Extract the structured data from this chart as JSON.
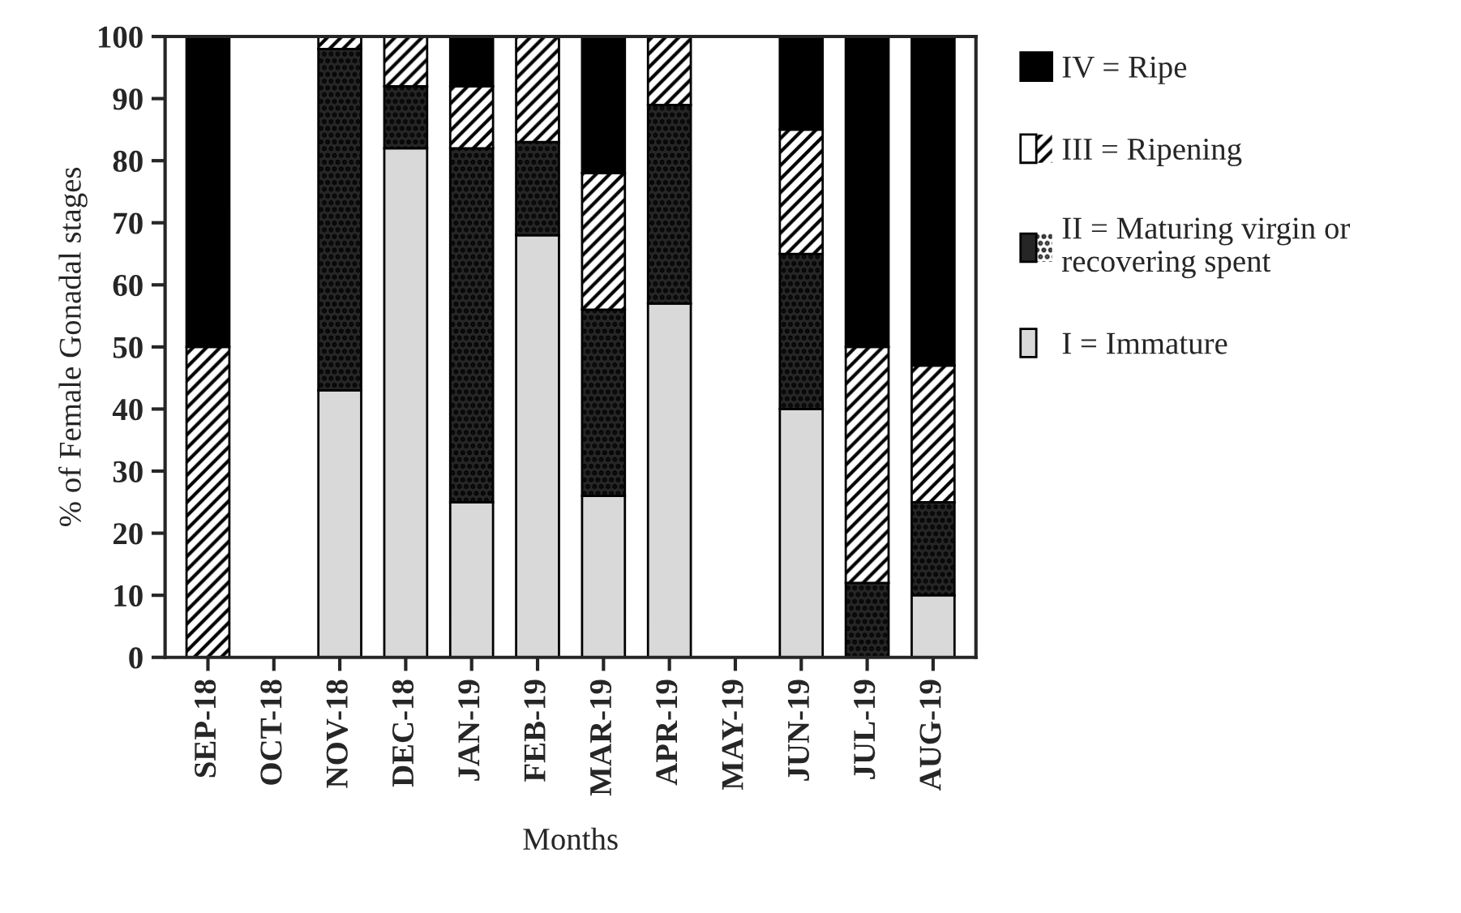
{
  "chart_data": {
    "type": "bar",
    "stacked": true,
    "xlabel": "Months",
    "ylabel": "% of Female Gonadal stages",
    "categories": [
      "SEP-18",
      "OCT-18",
      "NOV-18",
      "DEC-18",
      "JAN-19",
      "FEB-19",
      "MAR-19",
      "APR-19",
      "MAY-19",
      "JUN-19",
      "JUL-19",
      "AUG-19"
    ],
    "series": [
      {
        "name": "I = Immature",
        "color": "#d9d9d9",
        "values": [
          0,
          null,
          43,
          82,
          25,
          68,
          26,
          57,
          null,
          40,
          0,
          10
        ]
      },
      {
        "name": "II = Maturing virgin or\nrecovering spent",
        "color": "#262626",
        "values": [
          0,
          null,
          55,
          10,
          57,
          15,
          30,
          32,
          null,
          25,
          12,
          15
        ]
      },
      {
        "name": "III = Ripening",
        "color": "#ffffff",
        "values": [
          50,
          null,
          2,
          8,
          10,
          17,
          22,
          11,
          null,
          20,
          38,
          22
        ]
      },
      {
        "name": "IV = Ripe",
        "color": "#000000",
        "values": [
          50,
          null,
          0,
          0,
          8,
          0,
          22,
          0,
          null,
          15,
          50,
          53
        ]
      }
    ],
    "ylim": [
      0,
      100
    ],
    "yticks": [
      0,
      10,
      20,
      30,
      40,
      50,
      60,
      70,
      80,
      90,
      100
    ],
    "grid": false,
    "legend": "top right"
  }
}
